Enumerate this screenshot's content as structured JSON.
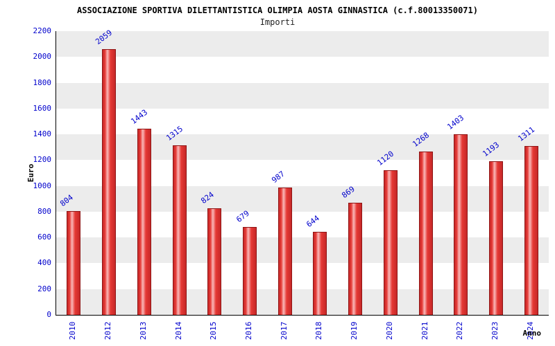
{
  "chart_data": {
    "type": "bar",
    "title": "ASSOCIAZIONE SPORTIVA DILETTANTISTICA OLIMPIA AOSTA GINNASTICA (c.f.80013350071)",
    "subtitle": "Importi",
    "xlabel": "Anno",
    "ylabel": "Euro",
    "categories": [
      "2010",
      "2012",
      "2013",
      "2014",
      "2015",
      "2016",
      "2017",
      "2018",
      "2019",
      "2020",
      "2021",
      "2022",
      "2023",
      "2024"
    ],
    "values": [
      804,
      2059,
      1443,
      1315,
      824,
      679,
      987,
      644,
      869,
      1120,
      1268,
      1403,
      1193,
      1311
    ],
    "ylim": [
      0,
      2200
    ],
    "yticks": [
      0,
      200,
      400,
      600,
      800,
      1000,
      1200,
      1400,
      1600,
      1800,
      2000,
      2200
    ],
    "grid": "alternating-horizontal-bands",
    "legend": "none",
    "colors": {
      "bar_fill": "#e53935",
      "bar_highlight": "#f9b8b8",
      "bar_border": "#8f1414",
      "value_label": "#0000cc",
      "tick_label": "#0000cc",
      "band_gray": "#ececec",
      "band_light": "#ffffff",
      "axis": "#000000"
    }
  }
}
